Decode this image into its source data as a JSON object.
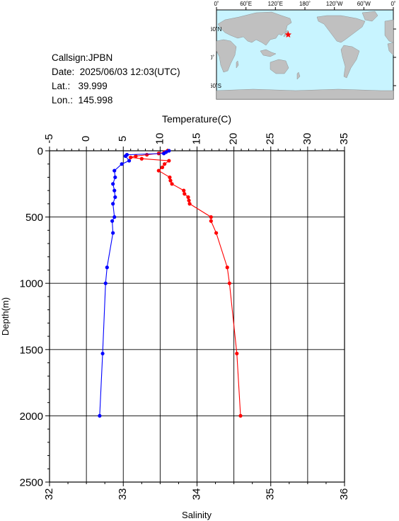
{
  "station": {
    "callsign": "Callsign:JPBN",
    "date": "Date:  2025/06/03 12:03(UTC)",
    "lat": "Lat.:   39.999",
    "lon": "Lon.:  145.998"
  },
  "map": {
    "lon_labels": [
      "0˚",
      "60˚E",
      "120˚E",
      "180˚",
      "120˚W",
      "60˚W",
      "0˚"
    ],
    "lat_labels": [
      "60˚N",
      "0˚",
      "60˚S"
    ],
    "station_lon": 145.998,
    "station_lat": 39.999,
    "ocean_color": "#c8f4ff",
    "land_color": "#c0c0c0",
    "marker_color": "#ff0000"
  },
  "chart_data": {
    "type": "line",
    "top_axis_label": "Temperature(C)",
    "bottom_axis_label": "Salinity",
    "ylabel": "Depth(m)",
    "temperature_range": [
      -5,
      35
    ],
    "temperature_ticks": [
      "-5",
      "0",
      "5",
      "10",
      "15",
      "20",
      "25",
      "30",
      "35"
    ],
    "salinity_range": [
      32,
      36
    ],
    "salinity_ticks": [
      "32",
      "33",
      "34",
      "35",
      "36"
    ],
    "depth_range": [
      0,
      2500
    ],
    "depth_ticks": [
      "0",
      "500",
      "1000",
      "1500",
      "2000",
      "2500"
    ],
    "grid": true,
    "series": [
      {
        "color": "#ff0000",
        "axis": "temperature",
        "points": [
          {
            "depth": 0,
            "value": 11.0
          },
          {
            "depth": 10,
            "value": 10.6
          },
          {
            "depth": 20,
            "value": 9.8
          },
          {
            "depth": 30,
            "value": 8.2
          },
          {
            "depth": 40,
            "value": 6.7
          },
          {
            "depth": 50,
            "value": 6.0
          },
          {
            "depth": 60,
            "value": 7.5
          },
          {
            "depth": 75,
            "value": 11.2
          },
          {
            "depth": 100,
            "value": 10.6
          },
          {
            "depth": 125,
            "value": 10.3
          },
          {
            "depth": 150,
            "value": 9.8
          },
          {
            "depth": 200,
            "value": 11.3
          },
          {
            "depth": 225,
            "value": 11.4
          },
          {
            "depth": 250,
            "value": 11.6
          },
          {
            "depth": 300,
            "value": 13.2
          },
          {
            "depth": 325,
            "value": 13.3
          },
          {
            "depth": 350,
            "value": 13.8
          },
          {
            "depth": 375,
            "value": 13.9
          },
          {
            "depth": 400,
            "value": 14.0
          },
          {
            "depth": 500,
            "value": 16.9
          },
          {
            "depth": 530,
            "value": 16.9
          },
          {
            "depth": 620,
            "value": 17.6
          },
          {
            "depth": 880,
            "value": 19.1
          },
          {
            "depth": 1000,
            "value": 19.4
          },
          {
            "depth": 1530,
            "value": 20.4
          },
          {
            "depth": 2000,
            "value": 20.9
          }
        ]
      },
      {
        "color": "#0000ff",
        "axis": "salinity",
        "points": [
          {
            "depth": 0,
            "value": 33.62
          },
          {
            "depth": 10,
            "value": 33.58
          },
          {
            "depth": 20,
            "value": 33.55
          },
          {
            "depth": 30,
            "value": 33.05
          },
          {
            "depth": 40,
            "value": 33.03
          },
          {
            "depth": 75,
            "value": 33.08
          },
          {
            "depth": 100,
            "value": 32.98
          },
          {
            "depth": 150,
            "value": 32.88
          },
          {
            "depth": 200,
            "value": 32.89
          },
          {
            "depth": 250,
            "value": 32.86
          },
          {
            "depth": 300,
            "value": 32.88
          },
          {
            "depth": 350,
            "value": 32.89
          },
          {
            "depth": 400,
            "value": 32.86
          },
          {
            "depth": 500,
            "value": 32.88
          },
          {
            "depth": 530,
            "value": 32.85
          },
          {
            "depth": 620,
            "value": 32.86
          },
          {
            "depth": 880,
            "value": 32.78
          },
          {
            "depth": 1000,
            "value": 32.76
          },
          {
            "depth": 1530,
            "value": 32.72
          },
          {
            "depth": 2000,
            "value": 32.68
          }
        ]
      }
    ]
  }
}
